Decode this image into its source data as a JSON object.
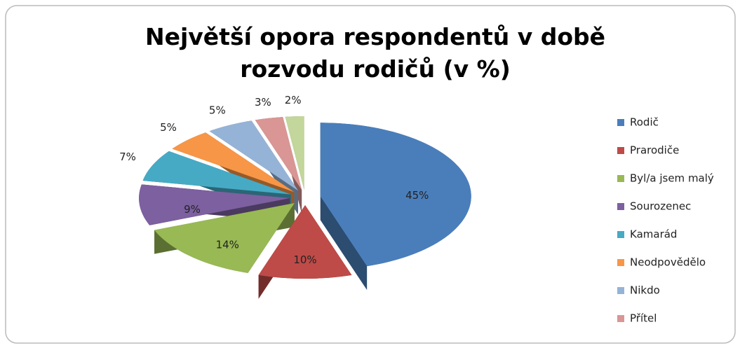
{
  "chart_data": {
    "type": "pie3d",
    "title": "Největší opora respondentů v době rozvodu rodičů (v %)",
    "categories": [
      "Rodič",
      "Prarodiče",
      "Byl/a jsem malý",
      "Sourozenec",
      "Kamarád",
      "Neodpovědělo",
      "Nikdo",
      "Přítel",
      null
    ],
    "values": [
      45,
      10,
      14,
      9,
      7,
      5,
      5,
      3,
      2
    ],
    "value_labels": [
      "45%",
      "10%",
      "14%",
      "9%",
      "7%",
      "5%",
      "5%",
      "3%",
      "2%"
    ],
    "colors": [
      "#4a7ebb",
      "#be4b48",
      "#98b954",
      "#7d60a0",
      "#46aac5",
      "#f79646",
      "#95b3d7",
      "#d99694",
      "#c3d69b"
    ],
    "legend": "right"
  }
}
